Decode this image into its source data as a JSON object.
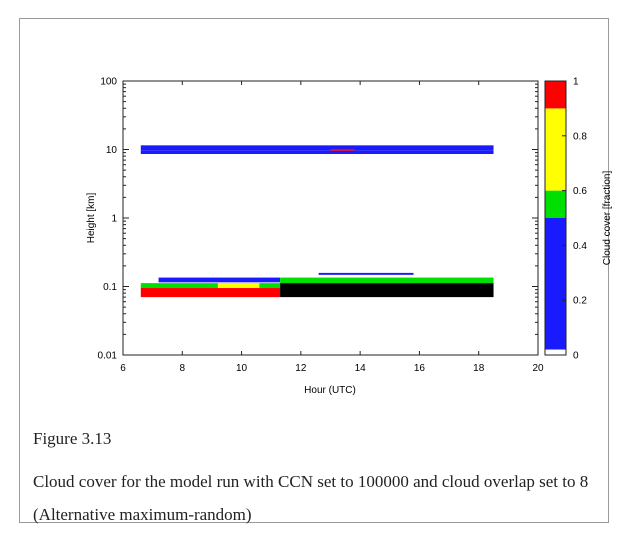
{
  "chart_data": {
    "type": "heatmap",
    "xlabel": "Hour (UTC)",
    "ylabel": "Height [km]",
    "x_ticks": [
      "6",
      "8",
      "10",
      "12",
      "14",
      "16",
      "18",
      "20"
    ],
    "y_ticks": [
      "100",
      "10",
      "1",
      "0.1",
      "0.01"
    ],
    "xlim": [
      6,
      20
    ],
    "ylim": [
      0.01,
      100
    ],
    "y_scale": "log",
    "colorbar": {
      "label": "Cloud cover [fraction]",
      "ticks": [
        "0",
        "0.2",
        "0.4",
        "0.6",
        "0.8",
        "1"
      ],
      "range": [
        0,
        1
      ],
      "levels": [
        {
          "from": 0.0,
          "to": 0.02,
          "color": "#ffffff"
        },
        {
          "from": 0.02,
          "to": 0.5,
          "color": "#1a1aff"
        },
        {
          "from": 0.5,
          "to": 0.6,
          "color": "#00e000"
        },
        {
          "from": 0.6,
          "to": 0.9,
          "color": "#ffff00"
        },
        {
          "from": 0.9,
          "to": 1.0,
          "color": "#ff0000"
        }
      ]
    },
    "cells": [
      {
        "x": [
          6.6,
          18.5
        ],
        "y": [
          9.6,
          11.5
        ],
        "value": 0.4
      },
      {
        "x": [
          6.6,
          18.5
        ],
        "y": [
          8.6,
          9.6
        ],
        "value": 0.4
      },
      {
        "x": [
          13.0,
          13.8
        ],
        "y": [
          9.6,
          10.2
        ],
        "value": 0.95
      },
      {
        "x": [
          7.2,
          11.3
        ],
        "y": [
          0.115,
          0.135
        ],
        "value": 0.4
      },
      {
        "x": [
          12.6,
          15.8
        ],
        "y": [
          0.148,
          0.158
        ],
        "value": 0.3
      },
      {
        "x": [
          6.6,
          11.3
        ],
        "y": [
          0.095,
          0.112
        ],
        "value": 0.55
      },
      {
        "x": [
          9.2,
          10.6
        ],
        "y": [
          0.095,
          0.112
        ],
        "value": 0.8
      },
      {
        "x": [
          11.3,
          18.5
        ],
        "y": [
          0.112,
          0.135
        ],
        "value": 0.55
      },
      {
        "x": [
          6.6,
          11.3
        ],
        "y": [
          0.07,
          0.095
        ],
        "value": 0.95
      },
      {
        "x": [
          11.3,
          18.5
        ],
        "y": [
          0.07,
          0.112
        ],
        "value": 1.0,
        "color": "#000000"
      }
    ]
  },
  "caption": {
    "label": "Figure 3.13",
    "text": "Cloud cover for the model run with CCN set to 100000 and cloud overlap set to 8 (Alternative maximum-random)"
  }
}
